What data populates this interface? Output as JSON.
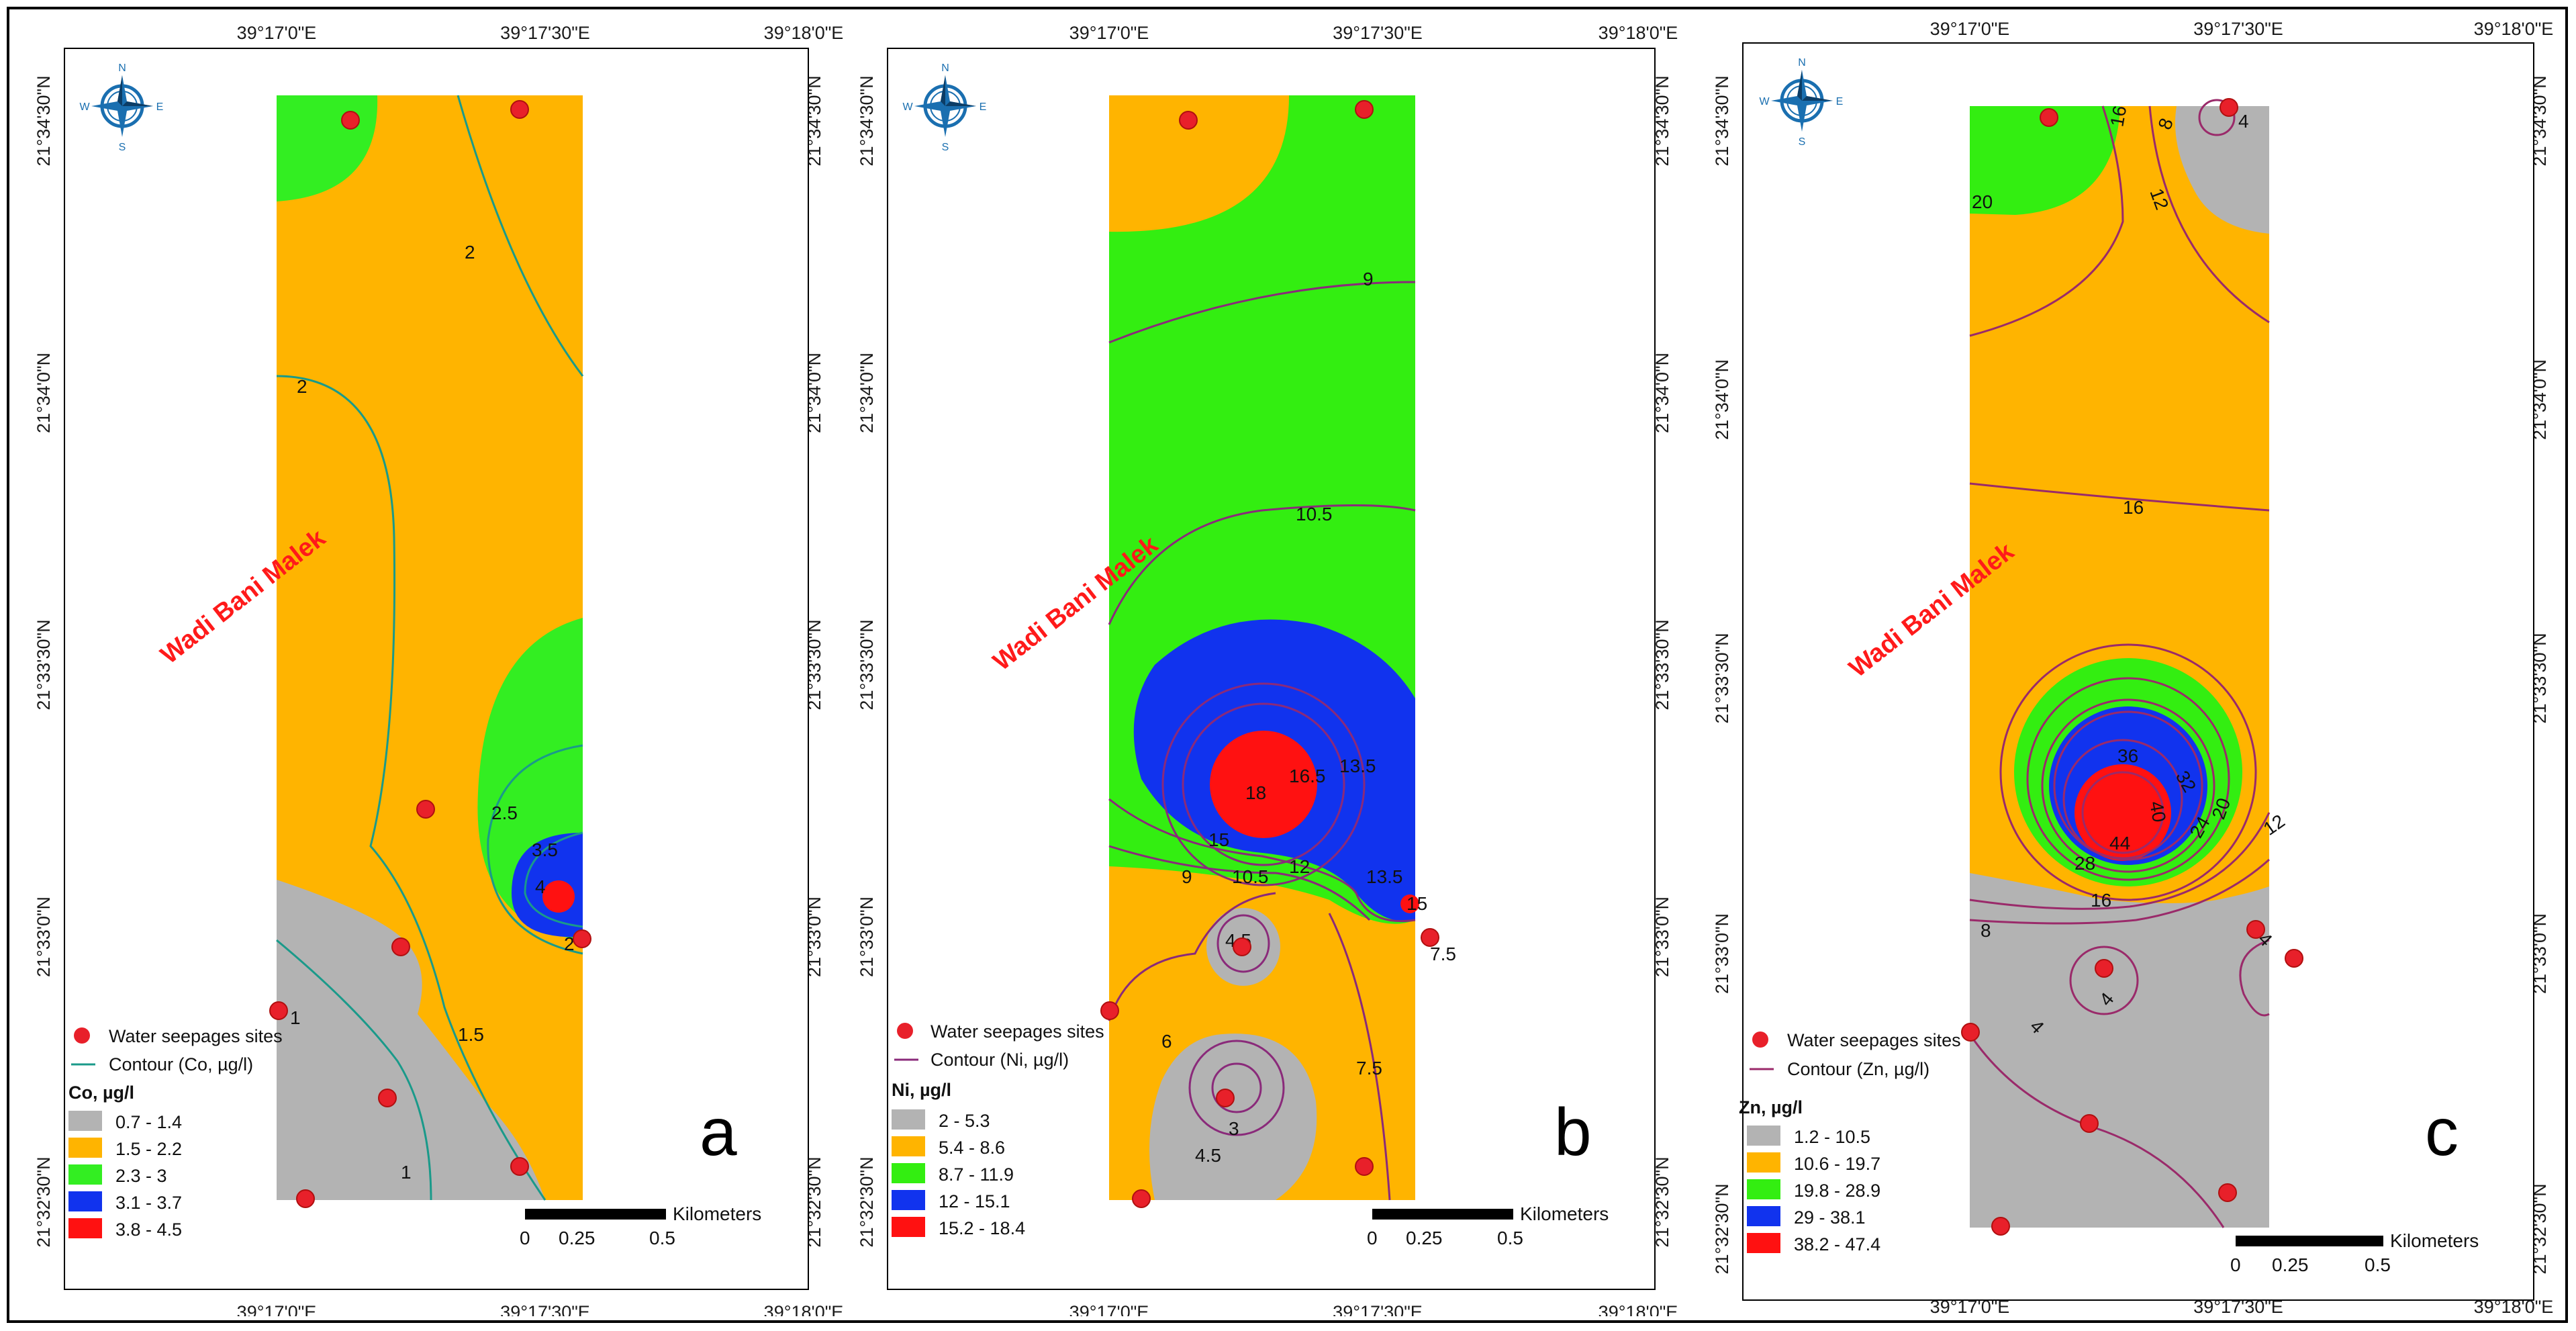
{
  "figure": {
    "place_label": "Wadi Bani Malek",
    "seepage_color": "#e8202a",
    "scale_unit": "Kilometers",
    "scale_ticks": [
      "0",
      "0.25",
      "0.5"
    ],
    "lon_ticks": [
      "39°17'0\"E",
      "39°17'30\"E",
      "39°18'0\"E"
    ],
    "lat_ticks": [
      "21°34'30\"N",
      "21°34'0\"N",
      "21°33'30\"N",
      "21°33'0\"N",
      "21°32'30\"N"
    ],
    "compass_letters": {
      "n": "N",
      "s": "S",
      "e": "E",
      "w": "W"
    }
  },
  "panels": [
    {
      "id": "a",
      "letter": "a",
      "legend_point": "Water seepages sites",
      "legend_contour": "Contour (Co, µg/l)",
      "legend_title": "Co, µg/l",
      "contour_color": "#1a9a8a",
      "classes": [
        {
          "label": "0.7 - 1.4",
          "color": "#b3b3b3"
        },
        {
          "label": "1.5 - 2.2",
          "color": "#ffb400"
        },
        {
          "label": "2.3 - 3",
          "color": "#33ee22"
        },
        {
          "label": "3.1 - 3.7",
          "color": "#1133ee"
        },
        {
          "label": "3.8 - 4.5",
          "color": "#ff1111"
        }
      ],
      "contour_labels": [
        "2",
        "2",
        "2.5",
        "3.5",
        "4",
        "1",
        "1.5",
        "1",
        "2"
      ]
    },
    {
      "id": "b",
      "letter": "b",
      "legend_point": "Water seepages sites",
      "legend_contour": "Contour (Ni, µg/l)",
      "legend_title": "Ni, µg/l",
      "contour_color": "#8a2a7a",
      "classes": [
        {
          "label": "2 - 5.3",
          "color": "#b3b3b3"
        },
        {
          "label": "5.4 - 8.6",
          "color": "#ffb400"
        },
        {
          "label": "8.7 - 11.9",
          "color": "#33ee11"
        },
        {
          "label": "12 - 15.1",
          "color": "#1133ee"
        },
        {
          "label": "15.2 - 18.4",
          "color": "#ff1111"
        }
      ],
      "contour_labels": [
        "9",
        "10.5",
        "13.5",
        "16.5",
        "18",
        "15",
        "12",
        "10.5",
        "9",
        "13.5",
        "4.5",
        "6",
        "3",
        "4.5",
        "7.5",
        "7.5",
        "15"
      ]
    },
    {
      "id": "c",
      "letter": "c",
      "legend_point": "Water seepages sites",
      "legend_contour": "Contour (Zn, µg/l)",
      "legend_title": "Zn, µg/l",
      "contour_color": "#9a2a6a",
      "classes": [
        {
          "label": "1.2 - 10.5",
          "color": "#b3b3b3"
        },
        {
          "label": "10.6 - 19.7",
          "color": "#ffb400"
        },
        {
          "label": "19.8 - 28.9",
          "color": "#33ee11"
        },
        {
          "label": "29 - 38.1",
          "color": "#1133ee"
        },
        {
          "label": "38.2 - 47.4",
          "color": "#ff1111"
        }
      ],
      "contour_labels": [
        "16",
        "8",
        "4",
        "12",
        "20",
        "16",
        "36",
        "32",
        "40",
        "44",
        "28",
        "24",
        "20",
        "12",
        "16",
        "8",
        "4",
        "4",
        "4"
      ]
    }
  ]
}
